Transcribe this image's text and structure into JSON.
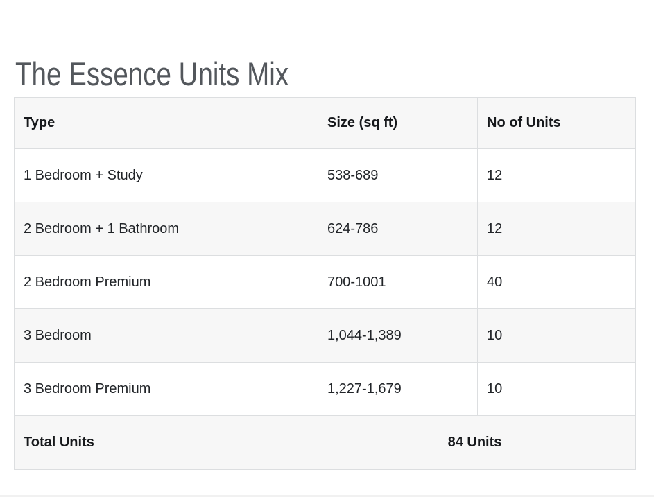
{
  "page": {
    "title": "The Essence Units Mix"
  },
  "table": {
    "columns": [
      "Type",
      "Size (sq ft)",
      "No of Units"
    ],
    "rows": [
      {
        "type": "1 Bedroom + Study",
        "size": "538-689",
        "units": "12"
      },
      {
        "type": "2 Bedroom + 1 Bathroom",
        "size": "624-786",
        "units": "12"
      },
      {
        "type": "2 Bedroom Premium",
        "size": "700-1001",
        "units": "40"
      },
      {
        "type": "3 Bedroom",
        "size": "1,044-1,389",
        "units": "10"
      },
      {
        "type": "3 Bedroom Premium",
        "size": "1,227-1,679",
        "units": "10"
      }
    ],
    "footer": {
      "label": "Total Units",
      "value": "84 Units"
    }
  },
  "colors": {
    "row_stripe": "#f7f7f7",
    "table_border": "#dcdee0",
    "title_text": "#53575c",
    "body_text": "#212428",
    "header_text": "#17191c"
  }
}
